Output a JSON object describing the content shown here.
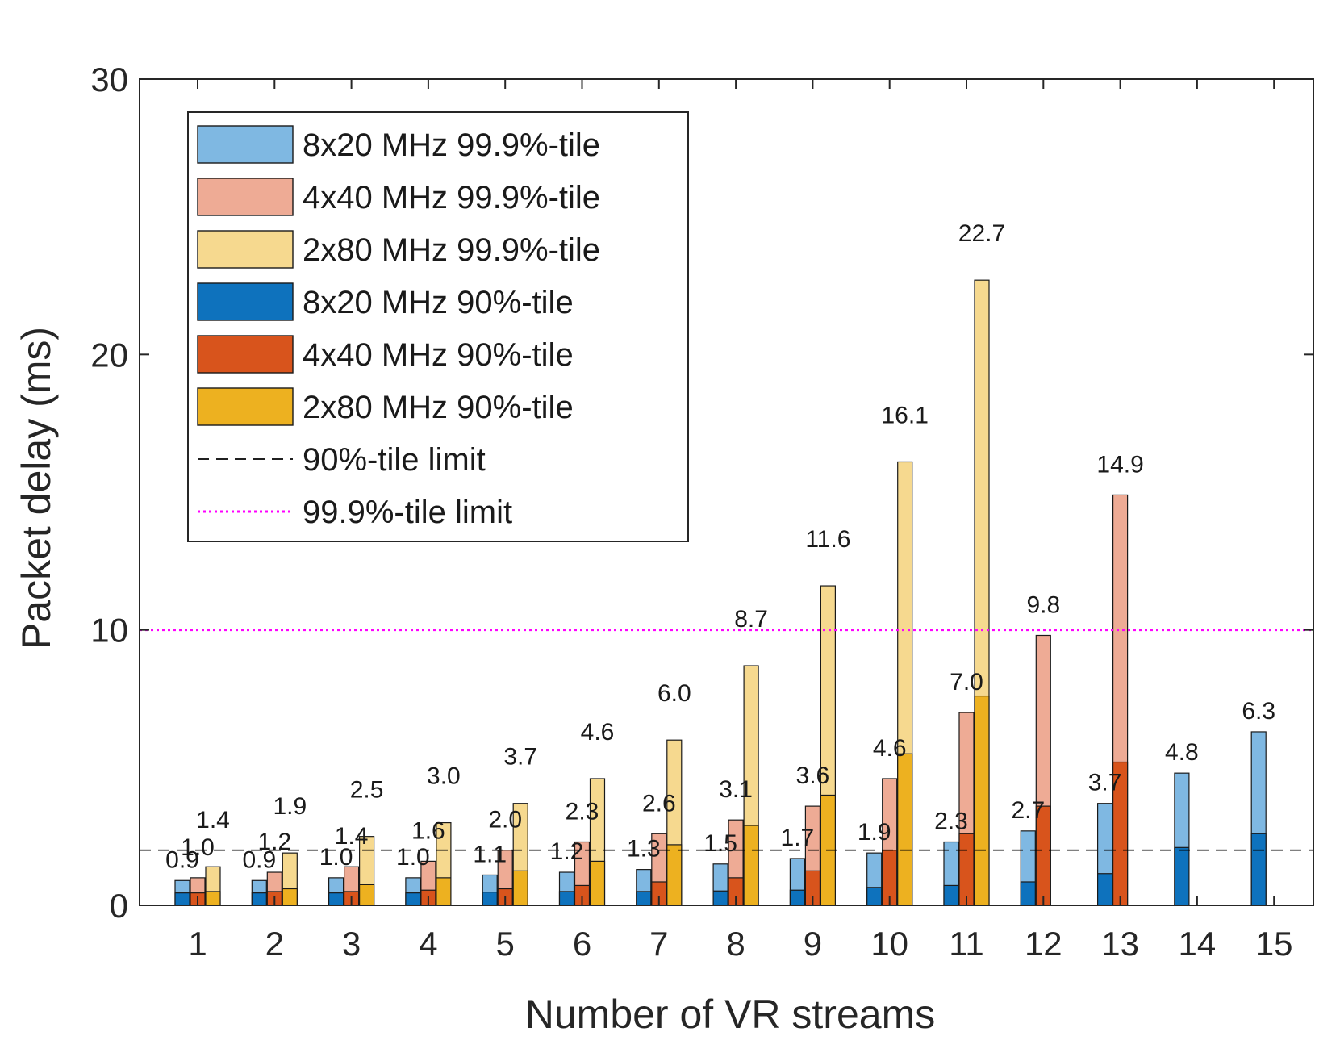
{
  "chart_data": {
    "type": "bar",
    "title": "",
    "xlabel": "Number of VR streams",
    "ylabel": "Packet delay (ms)",
    "ylim": [
      0,
      30
    ],
    "yticks": [
      "0",
      "10",
      "20",
      "30"
    ],
    "categories": [
      "1",
      "2",
      "3",
      "4",
      "5",
      "6",
      "7",
      "8",
      "9",
      "10",
      "11",
      "12",
      "13",
      "14",
      "15"
    ],
    "series": [
      {
        "name": "8x20 MHz 99.9%-tile",
        "color": "#7fb8e2",
        "group": "8x20",
        "kind": "p999",
        "values": [
          0.9,
          0.9,
          1.0,
          1.0,
          1.1,
          1.2,
          1.3,
          1.5,
          1.7,
          1.9,
          2.3,
          2.7,
          3.7,
          4.8,
          6.3
        ],
        "labels": [
          "0.9",
          "0.9",
          "1.0",
          "1.0",
          "1.1",
          "1.2",
          "1.3",
          "1.5",
          "1.7",
          "1.9",
          "2.3",
          "2.7",
          "3.7",
          "4.8",
          "6.3"
        ]
      },
      {
        "name": "4x40 MHz 99.9%-tile",
        "color": "#eeab95",
        "group": "4x40",
        "kind": "p999",
        "values": [
          1.0,
          1.2,
          1.4,
          1.6,
          2.0,
          2.3,
          2.6,
          3.1,
          3.6,
          4.6,
          7.0,
          9.8,
          14.9,
          null,
          null
        ],
        "labels": [
          "1.0",
          "1.2",
          "1.4",
          "1.6",
          "2.0",
          "2.3",
          "2.6",
          "3.1",
          "3.6",
          "4.6",
          "7.0",
          "9.8",
          "14.9",
          null,
          null
        ]
      },
      {
        "name": "2x80 MHz 99.9%-tile",
        "color": "#f6d98f",
        "group": "2x80",
        "kind": "p999",
        "values": [
          1.4,
          1.9,
          2.5,
          3.0,
          3.7,
          4.6,
          6.0,
          8.7,
          11.6,
          16.1,
          22.7,
          null,
          null,
          null,
          null
        ],
        "labels": [
          "1.4",
          "1.9",
          "2.5",
          "3.0",
          "3.7",
          "4.6",
          "6.0",
          "8.7",
          "11.6",
          "16.1",
          "22.7",
          null,
          null,
          null,
          null
        ]
      },
      {
        "name": "8x20 MHz 90%-tile",
        "color": "#0e72bd",
        "group": "8x20",
        "kind": "p90",
        "values": [
          0.45,
          0.45,
          0.45,
          0.45,
          0.48,
          0.5,
          0.5,
          0.52,
          0.55,
          0.65,
          0.72,
          0.85,
          1.15,
          2.1,
          2.6
        ]
      },
      {
        "name": "4x40 MHz 90%-tile",
        "color": "#d8541c",
        "group": "4x40",
        "kind": "p90",
        "values": [
          0.45,
          0.5,
          0.5,
          0.55,
          0.6,
          0.72,
          0.85,
          1.0,
          1.25,
          2.0,
          2.6,
          3.6,
          5.2,
          null,
          null
        ]
      },
      {
        "name": "2x80 MHz 90%-tile",
        "color": "#edb120",
        "group": "2x80",
        "kind": "p90",
        "values": [
          0.5,
          0.6,
          0.75,
          1.0,
          1.25,
          1.6,
          2.2,
          2.9,
          4.0,
          5.5,
          7.6,
          null,
          null,
          null,
          null
        ]
      }
    ],
    "reference_lines": [
      {
        "name": "90%-tile limit",
        "value": 2,
        "color": "#000000",
        "style": "dashed"
      },
      {
        "name": "99.9%-tile limit",
        "value": 10,
        "color": "#ff00ff",
        "style": "dotted"
      }
    ],
    "legend_position": "top-left",
    "grid": false
  }
}
